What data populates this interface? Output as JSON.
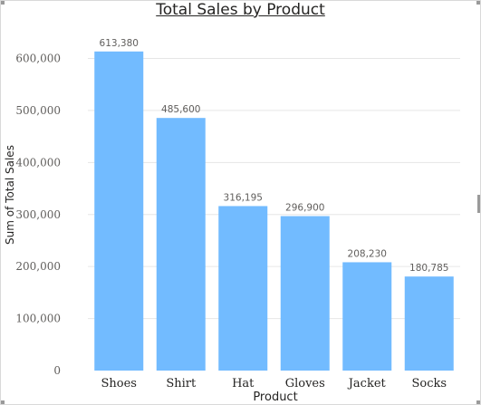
{
  "chart_data": {
    "type": "bar",
    "title": "Total Sales by Product",
    "xlabel": "Product",
    "ylabel": "Sum of Total Sales",
    "categories": [
      "Shoes",
      "Shirt",
      "Hat",
      "Gloves",
      "Jacket",
      "Socks"
    ],
    "values": [
      613380,
      485600,
      316195,
      296900,
      208230,
      180785
    ],
    "value_labels": [
      "613,380",
      "485,600",
      "316,195",
      "296,900",
      "208,230",
      "180,785"
    ],
    "ylim": [
      0,
      650000
    ],
    "yticks": [
      0,
      100000,
      200000,
      300000,
      400000,
      500000,
      600000
    ],
    "ytick_labels": [
      "0",
      "100,000",
      "200,000",
      "300,000",
      "400,000",
      "500,000",
      "600,000"
    ],
    "grid": true,
    "bar_color": "#72BBFF",
    "grid_color": "#E6E6E6"
  }
}
